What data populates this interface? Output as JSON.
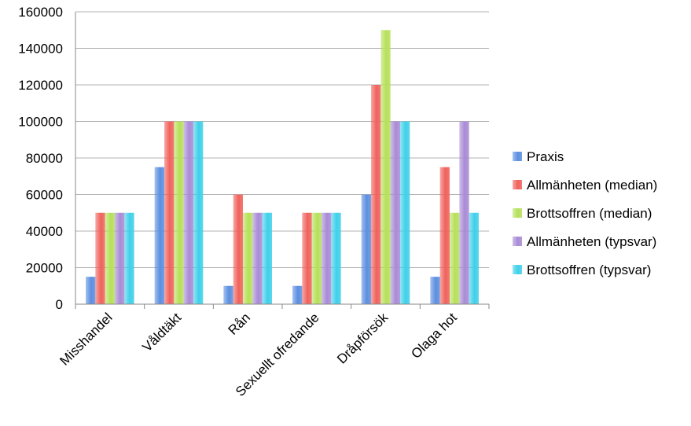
{
  "chart_data": {
    "type": "bar",
    "title": "",
    "xlabel": "",
    "ylabel": "",
    "ylim": [
      0,
      160000
    ],
    "yticks": [
      0,
      20000,
      40000,
      60000,
      80000,
      100000,
      120000,
      140000,
      160000
    ],
    "grid": true,
    "legend_position": "right",
    "categories": [
      "Misshandel",
      "Våldtäkt",
      "Rån",
      "Sexuellt ofredande",
      "Dråpförsök",
      "Olaga hot"
    ],
    "series": [
      {
        "name": "Praxis",
        "color": "#5b8fe0",
        "values": [
          15000,
          75000,
          10000,
          10000,
          60000,
          15000
        ]
      },
      {
        "name": "Allmänheten (median)",
        "color": "#f0625c",
        "values": [
          50000,
          100000,
          60000,
          50000,
          120000,
          75000
        ]
      },
      {
        "name": "Brottsoffren (median)",
        "color": "#b6e05a",
        "values": [
          50000,
          100000,
          50000,
          50000,
          150000,
          50000
        ]
      },
      {
        "name": "Allmänheten (typsvar)",
        "color": "#a98bd6",
        "values": [
          50000,
          100000,
          50000,
          50000,
          100000,
          100000
        ]
      },
      {
        "name": "Brottsoffren (typsvar)",
        "color": "#3fd0ea",
        "values": [
          50000,
          100000,
          50000,
          50000,
          100000,
          50000
        ]
      }
    ]
  }
}
